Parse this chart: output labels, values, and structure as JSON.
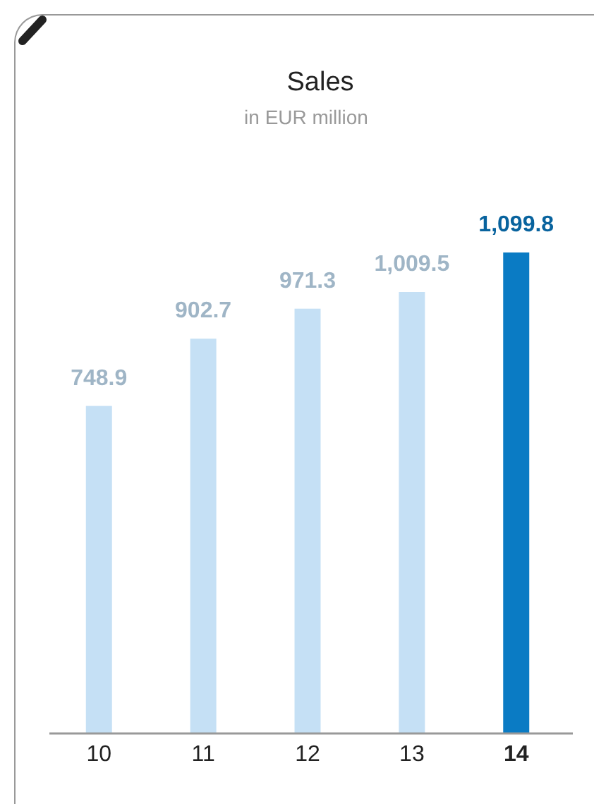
{
  "chart_data": {
    "type": "bar",
    "title": "Sales",
    "subtitle": "in EUR million",
    "categories": [
      "10",
      "11",
      "12",
      "13",
      "14"
    ],
    "values": [
      748.9,
      902.7,
      971.3,
      1009.5,
      1099.8
    ],
    "colors": [
      "#c5e0f5",
      "#c5e0f5",
      "#c5e0f5",
      "#c5e0f5",
      "#0a7bc4"
    ],
    "data_labels": true,
    "value_labels": [
      "748.9",
      "902.7",
      "971.3",
      "1,009.5",
      "1,099.8"
    ]
  }
}
